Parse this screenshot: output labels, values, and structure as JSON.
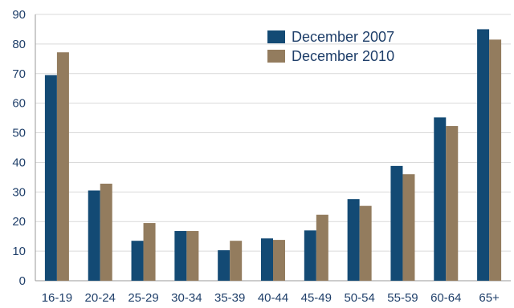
{
  "chart_data": {
    "type": "bar",
    "title": "",
    "xlabel": "",
    "ylabel": "",
    "categories": [
      "16-19",
      "20-24",
      "25-29",
      "30-34",
      "35-39",
      "40-44",
      "45-49",
      "50-54",
      "55-59",
      "60-64",
      "65+"
    ],
    "series": [
      {
        "name": "December 2007",
        "color": "#134a74",
        "values": [
          69.5,
          30.5,
          13.5,
          16.8,
          10.3,
          14.3,
          17.0,
          27.6,
          38.8,
          55.2,
          85.0
        ]
      },
      {
        "name": "December 2010",
        "color": "#937c5e",
        "values": [
          77.2,
          32.8,
          19.5,
          16.8,
          13.5,
          13.8,
          22.3,
          25.3,
          36.0,
          52.3,
          81.5
        ]
      }
    ],
    "ylim": [
      0,
      90
    ],
    "yticks": [
      0,
      10,
      20,
      30,
      40,
      50,
      60,
      70,
      80,
      90
    ],
    "grid": true,
    "legend_position": "top-right"
  }
}
